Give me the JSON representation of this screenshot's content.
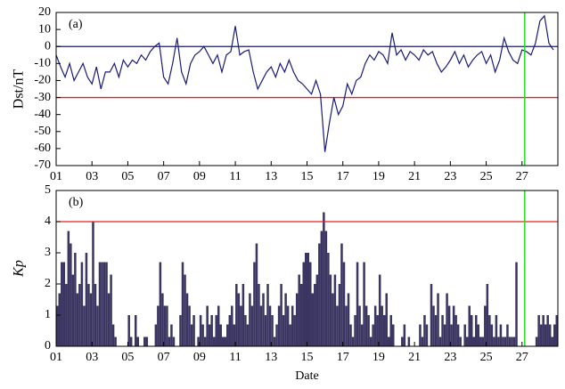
{
  "chart_data": [
    {
      "type": "line",
      "annotation": "(a)",
      "ylabel": "Dst/nT",
      "xlim": [
        1,
        29
      ],
      "ylim": [
        -70,
        20
      ],
      "xticks": [
        {
          "value": 1,
          "label": "01"
        },
        {
          "value": 3,
          "label": "03"
        },
        {
          "value": 5,
          "label": "05"
        },
        {
          "value": 7,
          "label": "07"
        },
        {
          "value": 9,
          "label": "09"
        },
        {
          "value": 11,
          "label": "11"
        },
        {
          "value": 13,
          "label": "13"
        },
        {
          "value": 15,
          "label": "15"
        },
        {
          "value": 17,
          "label": "17"
        },
        {
          "value": 19,
          "label": "19"
        },
        {
          "value": 21,
          "label": "21"
        },
        {
          "value": 23,
          "label": "23"
        },
        {
          "value": 25,
          "label": "25"
        },
        {
          "value": 27,
          "label": "27"
        }
      ],
      "yticks": [
        -70,
        -60,
        -50,
        -40,
        -30,
        -20,
        -10,
        0,
        10,
        20
      ],
      "hlines": [
        {
          "value": 0,
          "color": "#1a1a6e"
        },
        {
          "value": -30,
          "color": "#e02020"
        }
      ],
      "vline": {
        "value": 27.15,
        "color": "#22dd22"
      },
      "color": "#1a1a7a",
      "x": [
        1,
        1.25,
        1.5,
        1.75,
        2,
        2.25,
        2.5,
        2.75,
        3,
        3.25,
        3.5,
        3.75,
        4,
        4.25,
        4.5,
        4.75,
        5,
        5.25,
        5.5,
        5.75,
        6,
        6.25,
        6.5,
        6.75,
        7,
        7.25,
        7.5,
        7.75,
        8,
        8.25,
        8.5,
        8.75,
        9,
        9.25,
        9.5,
        9.75,
        10,
        10.25,
        10.5,
        10.75,
        11,
        11.25,
        11.5,
        11.75,
        12,
        12.25,
        12.5,
        12.75,
        13,
        13.25,
        13.5,
        13.75,
        14,
        14.25,
        14.5,
        14.75,
        15,
        15.25,
        15.5,
        15.75,
        16,
        16.25,
        16.5,
        16.75,
        17,
        17.25,
        17.5,
        17.75,
        18,
        18.25,
        18.5,
        18.75,
        19,
        19.25,
        19.5,
        19.75,
        20,
        20.25,
        20.5,
        20.75,
        21,
        21.25,
        21.5,
        21.75,
        22,
        22.25,
        22.5,
        22.75,
        23,
        23.25,
        23.5,
        23.75,
        24,
        24.25,
        24.5,
        24.75,
        25,
        25.25,
        25.5,
        25.75,
        26,
        26.25,
        26.5,
        26.75,
        27,
        27.25,
        27.5,
        27.75,
        28,
        28.25,
        28.5,
        28.75
      ],
      "values": [
        -5,
        -12,
        -18,
        -10,
        -20,
        -15,
        -10,
        -18,
        -22,
        -12,
        -25,
        -15,
        -15,
        -10,
        -18,
        -8,
        -12,
        -8,
        -10,
        -5,
        -8,
        -3,
        0,
        2,
        -18,
        -22,
        -10,
        5,
        -15,
        -22,
        -10,
        -5,
        -3,
        0,
        -5,
        -10,
        -5,
        -15,
        -5,
        -3,
        12,
        -5,
        -3,
        -2,
        -15,
        -25,
        -20,
        -15,
        -12,
        -18,
        -10,
        -15,
        -8,
        -15,
        -20,
        -22,
        -25,
        -28,
        -20,
        -28,
        -62,
        -45,
        -30,
        -40,
        -35,
        -22,
        -28,
        -20,
        -18,
        -10,
        -5,
        -8,
        -3,
        -5,
        -10,
        8,
        -5,
        -2,
        -8,
        -3,
        -5,
        -8,
        -2,
        -5,
        -3,
        -10,
        -15,
        -12,
        -8,
        -3,
        -10,
        -5,
        -12,
        -8,
        -5,
        -3,
        -10,
        -5,
        -15,
        -8,
        5,
        -3,
        -8,
        -10,
        -2,
        -3,
        -5,
        2,
        15,
        18,
        2,
        -2
      ]
    },
    {
      "type": "bar",
      "annotation": "(b)",
      "ylabel": "Kp",
      "xlabel": "Date",
      "xlim": [
        1,
        29
      ],
      "ylim": [
        0,
        5
      ],
      "xticks": [
        {
          "value": 1,
          "label": "01"
        },
        {
          "value": 3,
          "label": "03"
        },
        {
          "value": 5,
          "label": "05"
        },
        {
          "value": 7,
          "label": "07"
        },
        {
          "value": 9,
          "label": "09"
        },
        {
          "value": 11,
          "label": "11"
        },
        {
          "value": 13,
          "label": "13"
        },
        {
          "value": 15,
          "label": "15"
        },
        {
          "value": 17,
          "label": "17"
        },
        {
          "value": 19,
          "label": "19"
        },
        {
          "value": 21,
          "label": "21"
        },
        {
          "value": 23,
          "label": "23"
        },
        {
          "value": 25,
          "label": "25"
        },
        {
          "value": 27,
          "label": "27"
        }
      ],
      "yticks": [
        0,
        1,
        2,
        3,
        4,
        5
      ],
      "hlines": [
        {
          "value": 4,
          "color": "#e02020"
        }
      ],
      "vline": {
        "value": 27.15,
        "color": "#22dd22"
      },
      "color": "#3b3562",
      "x": [
        1,
        1.125,
        1.25,
        1.375,
        1.5,
        1.625,
        1.75,
        1.875,
        2,
        2.125,
        2.25,
        2.375,
        2.5,
        2.625,
        2.75,
        2.875,
        3,
        3.125,
        3.25,
        3.375,
        3.5,
        3.625,
        3.75,
        3.875,
        4,
        4.125,
        4.25,
        4.375,
        4.5,
        4.625,
        4.75,
        4.875,
        5,
        5.125,
        5.25,
        5.375,
        5.5,
        5.625,
        5.75,
        5.875,
        6,
        6.125,
        6.25,
        6.375,
        6.5,
        6.625,
        6.75,
        6.875,
        7,
        7.125,
        7.25,
        7.375,
        7.5,
        7.625,
        7.75,
        7.875,
        8,
        8.125,
        8.25,
        8.375,
        8.5,
        8.625,
        8.75,
        8.875,
        9,
        9.125,
        9.25,
        9.375,
        9.5,
        9.625,
        9.75,
        9.875,
        10,
        10.125,
        10.25,
        10.375,
        10.5,
        10.625,
        10.75,
        10.875,
        11,
        11.125,
        11.25,
        11.375,
        11.5,
        11.625,
        11.75,
        11.875,
        12,
        12.125,
        12.25,
        12.375,
        12.5,
        12.625,
        12.75,
        12.875,
        13,
        13.125,
        13.25,
        13.375,
        13.5,
        13.625,
        13.75,
        13.875,
        14,
        14.125,
        14.25,
        14.375,
        14.5,
        14.625,
        14.75,
        14.875,
        15,
        15.125,
        15.25,
        15.375,
        15.5,
        15.625,
        15.75,
        15.875,
        16,
        16.125,
        16.25,
        16.375,
        16.5,
        16.625,
        16.75,
        16.875,
        17,
        17.125,
        17.25,
        17.375,
        17.5,
        17.625,
        17.75,
        17.875,
        18,
        18.125,
        18.25,
        18.375,
        18.5,
        18.625,
        18.75,
        18.875,
        19,
        19.125,
        19.25,
        19.375,
        19.5,
        19.625,
        19.75,
        19.875,
        20,
        20.125,
        20.25,
        20.375,
        20.5,
        20.625,
        20.75,
        20.875,
        21,
        21.125,
        21.25,
        21.375,
        21.5,
        21.625,
        21.75,
        21.875,
        22,
        22.125,
        22.25,
        22.375,
        22.5,
        22.625,
        22.75,
        22.875,
        23,
        23.125,
        23.25,
        23.375,
        23.5,
        23.625,
        23.75,
        23.875,
        24,
        24.125,
        24.25,
        24.375,
        24.5,
        24.625,
        24.75,
        24.875,
        25,
        25.125,
        25.25,
        25.375,
        25.5,
        25.625,
        25.75,
        25.875,
        26,
        26.125,
        26.25,
        26.375,
        26.5,
        26.625,
        26.75,
        26.875,
        27,
        27.125,
        27.25,
        27.375,
        27.5,
        27.625,
        27.75,
        27.875,
        28,
        28.125,
        28.25,
        28.375,
        28.5,
        28.625,
        28.75,
        28.875
      ],
      "values": [
        1.3,
        1.7,
        2.7,
        2.7,
        2,
        3.7,
        3.3,
        2.3,
        3,
        1.7,
        2,
        2.7,
        1.3,
        3,
        2,
        1.7,
        4,
        2,
        1.3,
        2.7,
        2.7,
        2.7,
        2.7,
        1.7,
        2.3,
        0.7,
        0.3,
        0,
        0,
        0,
        0,
        0,
        1,
        0.3,
        0,
        1,
        0.3,
        0,
        0,
        0.3,
        0.3,
        0,
        0,
        0,
        0.7,
        1.3,
        2.7,
        1.7,
        1.3,
        1.3,
        0.3,
        0.7,
        0.3,
        0,
        0,
        1,
        2.7,
        2.3,
        1.7,
        1.3,
        0.7,
        1,
        0,
        0.3,
        1,
        0.7,
        0.3,
        1.3,
        0.7,
        1,
        0.3,
        1,
        1.3,
        0.7,
        0.3,
        0.3,
        0.7,
        1,
        1.3,
        0.7,
        2,
        1.7,
        1.3,
        2,
        1,
        0.7,
        1.7,
        1.3,
        2.7,
        3.3,
        2,
        1.3,
        1.7,
        1,
        2,
        1.3,
        1,
        0.3,
        0.7,
        1.3,
        2,
        1,
        1.7,
        1.3,
        0.7,
        1.3,
        1,
        1.7,
        2.3,
        2,
        2.7,
        3,
        3,
        2.7,
        1.7,
        2,
        2.3,
        3.3,
        3.7,
        4.3,
        3.7,
        3,
        2.3,
        1.7,
        2.3,
        1.3,
        2,
        3.3,
        2.7,
        1.3,
        1.7,
        0.7,
        0.3,
        1,
        2.7,
        1.3,
        0.7,
        2.7,
        1.3,
        1,
        0.3,
        0.7,
        1.3,
        1,
        2.3,
        1.3,
        1,
        1.7,
        0.3,
        1,
        0.7,
        0,
        0,
        0,
        0.3,
        0.7,
        0,
        0.3,
        0,
        0,
        0,
        0,
        0.7,
        0.3,
        1,
        0.7,
        0,
        2,
        1.3,
        1,
        1.7,
        0.3,
        1,
        0.7,
        1.7,
        1.3,
        0.7,
        1.3,
        1,
        0.7,
        0.3,
        0,
        0.7,
        0.3,
        1.3,
        1,
        0.3,
        1,
        0.7,
        0.3,
        0.3,
        1.3,
        2,
        1,
        0.7,
        0.3,
        1,
        0.3,
        0.7,
        0.3,
        0.3,
        0.7,
        0.3,
        0.3,
        0.3,
        2.7,
        0,
        0,
        0,
        0,
        0,
        0,
        0,
        0,
        0.3,
        1,
        0.7,
        1,
        0.7,
        1,
        0.7,
        0.3,
        0.7,
        1
      ]
    }
  ]
}
